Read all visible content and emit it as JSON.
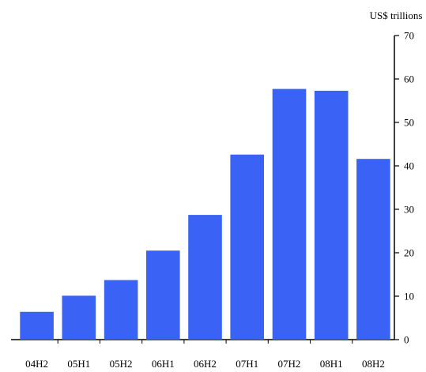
{
  "chart_data": {
    "type": "bar",
    "title": "",
    "xlabel": "",
    "ylabel": "US$ trillions",
    "categories": [
      "04H2",
      "05H1",
      "05H2",
      "06H1",
      "06H2",
      "07H1",
      "07H2",
      "08H1",
      "08H2"
    ],
    "values": [
      6.4,
      10.1,
      13.7,
      20.5,
      28.7,
      42.6,
      57.7,
      57.3,
      41.6
    ],
    "ylim": [
      0,
      70
    ],
    "yticks": [
      0,
      10,
      20,
      30,
      40,
      50,
      60,
      70
    ],
    "y_axis_side": "right",
    "grid": false,
    "legend": "none",
    "bar_color": "#3a63f5"
  }
}
